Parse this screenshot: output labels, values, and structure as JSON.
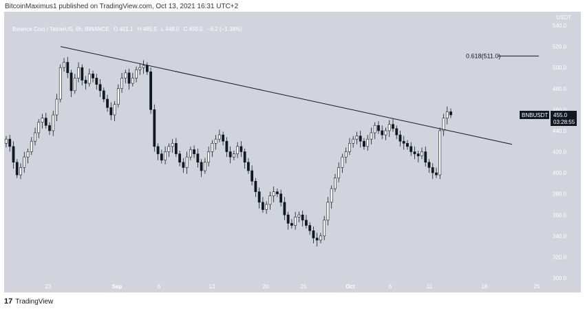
{
  "header": {
    "published": "BitcoinMaximus1 published on TradingView.com, Oct 13, 2021 16:31 UTC+2"
  },
  "symbol": {
    "name": "Binance Coin / TetherUS, 6h, BINANCE",
    "open": "O 461.1",
    "high": "H 465.5",
    "low": "L 448.0",
    "close": "C 455.0",
    "change": "−6.2 (−1.34%)"
  },
  "currency": "USDT",
  "ticker_label": "BNBUSDT",
  "price_label": "455.0",
  "countdown": "03:28:55",
  "fib_label": "0.618(511.0)",
  "footer": {
    "brand": "TradingView",
    "logo": "17"
  },
  "chart_data": {
    "type": "candlestick",
    "y_axis": {
      "min": 300,
      "max": 540,
      "ticks": [
        300,
        320,
        340,
        360,
        380,
        400,
        420,
        440,
        460,
        480,
        500,
        520,
        540
      ],
      "labels": [
        "300.0",
        "320.0",
        "340.0",
        "360.0",
        "380.0",
        "400.0",
        "420.0",
        "440.0",
        "460.0",
        "480.0",
        "500.0",
        "520.0",
        "540.0"
      ]
    },
    "x_axis": {
      "ticks": [
        "23",
        "Sep",
        "6",
        "13",
        "20",
        "25",
        "Oct",
        "6",
        "11",
        "18",
        "25"
      ]
    },
    "closes": [
      432,
      425,
      410,
      398,
      405,
      415,
      420,
      430,
      438,
      448,
      452,
      445,
      440,
      455,
      470,
      500,
      505,
      495,
      478,
      490,
      500,
      488,
      485,
      494,
      490,
      484,
      478,
      470,
      462,
      455,
      465,
      480,
      490,
      495,
      485,
      490,
      498,
      500,
      502,
      496,
      460,
      425,
      418,
      412,
      420,
      425,
      428,
      418,
      410,
      405,
      415,
      422,
      418,
      410,
      402,
      410,
      420,
      428,
      432,
      436,
      430,
      420,
      415,
      418,
      425,
      420,
      410,
      402,
      392,
      382,
      372,
      365,
      370,
      378,
      382,
      380,
      372,
      360,
      352,
      350,
      358,
      360,
      355,
      350,
      345,
      338,
      336,
      340,
      355,
      372,
      385,
      395,
      405,
      415,
      420,
      428,
      432,
      435,
      430,
      425,
      432,
      438,
      445,
      440,
      436,
      440,
      446,
      442,
      436,
      430,
      428,
      425,
      420,
      418,
      416,
      420,
      410,
      405,
      400,
      398,
      440,
      452,
      458,
      455
    ],
    "trendline": {
      "start": {
        "x": "Aug 24",
        "y": 520
      },
      "end": {
        "x": "Oct 21",
        "y": 427
      }
    },
    "fib_level": {
      "ratio": "0.618",
      "value": 511.0
    },
    "last_price": 455.0
  },
  "colors": {
    "bg": "#d1d4dc",
    "axis_text": "#ffffff",
    "candle": "#131722",
    "label_bg": "#131722"
  }
}
